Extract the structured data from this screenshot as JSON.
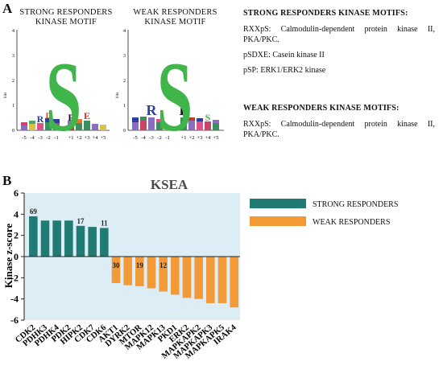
{
  "panel_a": {
    "letter": "A",
    "logos": [
      {
        "title_line1": "STRONG RESPONDERS",
        "title_line2": "KINASE MOTIF",
        "y_label": "bits",
        "y_ticks": [
          "0",
          "1",
          "2",
          "3",
          "4"
        ],
        "x_ticks": [
          "-5",
          "-4",
          "-3",
          "-2",
          "-1",
          "+1",
          "+2",
          "+3",
          "+4",
          "+5"
        ],
        "center_letter": "S",
        "side_letters": [
          "R",
          "D",
          "P",
          "E"
        ]
      },
      {
        "title_line1": "WEAK RESPONDERS",
        "title_line2": "KINASE MOTIF",
        "y_label": "bits",
        "y_ticks": [
          "0",
          "1",
          "2",
          "3",
          "4"
        ],
        "x_ticks": [
          "-5",
          "-4",
          "-3",
          "-2",
          "-1",
          "+1",
          "+2",
          "+3",
          "+4",
          "+5"
        ],
        "center_letter": "S",
        "side_letters": [
          "R",
          "P",
          "S"
        ]
      }
    ],
    "strong_motifs": {
      "heading": "STRONG RESPONDERS KINASE MOTIFS:",
      "lines": [
        "RXXpS: Calmodulin-dependent protein kinase II, PKA/PKC.",
        "pSDXE: Casein kinase II",
        "pSP: ERK1/ERK2 kinase"
      ]
    },
    "weak_motifs": {
      "heading": "WEAK RESPONDERS KINASE MOTIFS:",
      "lines": [
        "RXXpS: Calmodulin-dependent protein kinase II, PKA/PKC."
      ]
    }
  },
  "panel_b": {
    "letter": "B"
  },
  "chart_data": {
    "type": "bar",
    "title": "KSEA",
    "ylabel": "Kinase z-score",
    "xlabel": "",
    "ylim": [
      -6,
      6
    ],
    "y_ticks": [
      -6,
      -4,
      -2,
      0,
      2,
      4,
      6
    ],
    "grid": false,
    "legend_position": "top-right",
    "colors": {
      "strong": "#1f7b74",
      "weak": "#f39a37",
      "background": "#dcedf6"
    },
    "categories": [
      "CDK2",
      "PDHK3",
      "PDHK4",
      "PDK2",
      "HIPK2",
      "CDK7",
      "CDK6",
      "AKT1",
      "DYRK2",
      "MTOR",
      "MAPK12",
      "MAPK13",
      "PKD1",
      "ERK2",
      "MAPKAPK2",
      "MAPKAPK3",
      "MAPKAPK5",
      "IRAK4"
    ],
    "series": [
      {
        "name": "STRONG RESPONDERS",
        "values": [
          3.8,
          3.4,
          3.4,
          3.4,
          2.9,
          2.8,
          2.7,
          null,
          null,
          null,
          null,
          null,
          null,
          null,
          null,
          null,
          null,
          null
        ]
      },
      {
        "name": "WEAK RESPONDERS",
        "values": [
          null,
          null,
          null,
          null,
          null,
          null,
          null,
          -2.5,
          -2.7,
          -2.8,
          -3.0,
          -3.3,
          -3.6,
          -3.9,
          -4.0,
          -4.4,
          -4.4,
          -4.8
        ]
      }
    ],
    "data_labels": [
      {
        "category": "CDK2",
        "text": "69"
      },
      {
        "category": "HIPK2",
        "text": "17"
      },
      {
        "category": "CDK6",
        "text": "11"
      },
      {
        "category": "AKT1",
        "text": "30"
      },
      {
        "category": "MTOR",
        "text": "19"
      },
      {
        "category": "MAPK13",
        "text": "12"
      }
    ]
  }
}
